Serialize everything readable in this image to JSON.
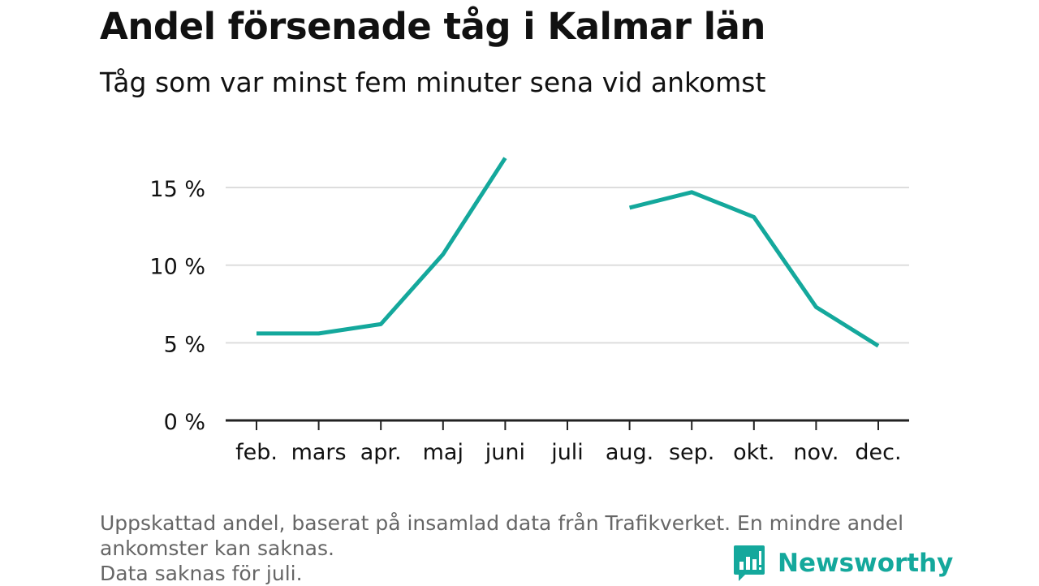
{
  "title": "Andel försenade tåg i Kalmar län",
  "subtitle": "Tåg som var minst fem minuter sena vid ankomst",
  "footnote": {
    "line1": "Uppskattad andel, baserat på insamlad data från Trafikverket. En mindre andel",
    "line2": "ankomster kan saknas.",
    "line3": "Data saknas för juli."
  },
  "logo": {
    "text": "Newsworthy",
    "icon": "bar-chart-speech-bubble-icon"
  },
  "colors": {
    "line": "#14a89c",
    "grid": "#dddddd",
    "axis": "#222222",
    "text": "#111111"
  },
  "chart_data": {
    "type": "line",
    "title": "Andel försenade tåg i Kalmar län",
    "subtitle": "Tåg som var minst fem minuter sena vid ankomst",
    "categories": [
      "feb.",
      "mars",
      "apr.",
      "maj",
      "juni",
      "juli",
      "aug.",
      "sep.",
      "okt.",
      "nov.",
      "dec."
    ],
    "values": [
      5.6,
      5.6,
      6.2,
      10.7,
      16.9,
      null,
      13.7,
      14.7,
      13.1,
      7.3,
      4.8
    ],
    "yticks": [
      0,
      5,
      10,
      15
    ],
    "ytick_labels": [
      "0 %",
      "5 %",
      "10 %",
      "15 %"
    ],
    "ylim": [
      0,
      17
    ],
    "grid": true,
    "legend": "none"
  }
}
